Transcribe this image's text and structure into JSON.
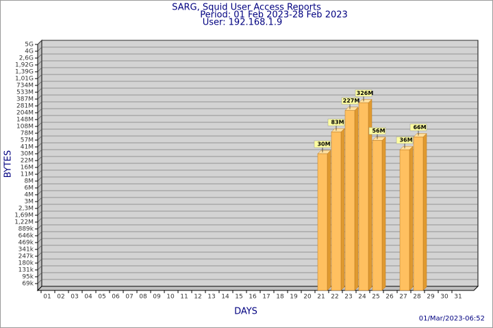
{
  "chart_data": {
    "type": "bar",
    "title": "SARG, Squid User Access Reports",
    "subtitle": "Period: 01 Feb 2023-28 Feb 2023",
    "user": "User: 192.168.1.9",
    "x_label": "DAYS",
    "y_label": "BYTES",
    "footer": "01/Mar/2023-06:52",
    "color": "#ffc060",
    "categories": [
      "01",
      "02",
      "03",
      "04",
      "05",
      "06",
      "07",
      "08",
      "09",
      "10",
      "11",
      "12",
      "13",
      "14",
      "15",
      "16",
      "17",
      "18",
      "19",
      "20",
      "21",
      "22",
      "23",
      "24",
      "25",
      "26",
      "27",
      "28",
      "29",
      "30",
      "31"
    ],
    "values": [
      null,
      null,
      null,
      null,
      null,
      null,
      null,
      null,
      null,
      null,
      null,
      null,
      null,
      null,
      null,
      null,
      null,
      null,
      null,
      null,
      30000000,
      83000000,
      227000000,
      326000000,
      56000000,
      null,
      36000000,
      66000000,
      null,
      null,
      null
    ],
    "value_labels": [
      null,
      null,
      null,
      null,
      null,
      null,
      null,
      null,
      null,
      null,
      null,
      null,
      null,
      null,
      null,
      null,
      null,
      null,
      null,
      null,
      "30M",
      "83M",
      "227M",
      "326M",
      "56M",
      null,
      "36M",
      "66M",
      null,
      null,
      null
    ],
    "ylim": [
      50000,
      5000000000
    ],
    "yticks": [
      {
        "value": 69000,
        "label": "69k"
      },
      {
        "value": 95000,
        "label": "95k"
      },
      {
        "value": 131000,
        "label": "131k"
      },
      {
        "value": 180000,
        "label": "180k"
      },
      {
        "value": 247000,
        "label": "247k"
      },
      {
        "value": 341000,
        "label": "341k"
      },
      {
        "value": 469000,
        "label": "469k"
      },
      {
        "value": 646000,
        "label": "646k"
      },
      {
        "value": 889000,
        "label": "889k"
      },
      {
        "value": 1220000,
        "label": "1,22M"
      },
      {
        "value": 1690000,
        "label": "1,69M"
      },
      {
        "value": 2300000,
        "label": "2,3M"
      },
      {
        "value": 3000000,
        "label": "3M"
      },
      {
        "value": 4000000,
        "label": "4M"
      },
      {
        "value": 6000000,
        "label": "6M"
      },
      {
        "value": 8000000,
        "label": "8M"
      },
      {
        "value": 11000000,
        "label": "11M"
      },
      {
        "value": 16000000,
        "label": "16M"
      },
      {
        "value": 22000000,
        "label": "22M"
      },
      {
        "value": 30000000,
        "label": "30M"
      },
      {
        "value": 41000000,
        "label": "41M"
      },
      {
        "value": 57000000,
        "label": "57M"
      },
      {
        "value": 78000000,
        "label": "78M"
      },
      {
        "value": 108000000,
        "label": "108M"
      },
      {
        "value": 148000000,
        "label": "148M"
      },
      {
        "value": 204000000,
        "label": "204M"
      },
      {
        "value": 281000000,
        "label": "281M"
      },
      {
        "value": 387000000,
        "label": "387M"
      },
      {
        "value": 533000000,
        "label": "533M"
      },
      {
        "value": 734000000,
        "label": "734M"
      },
      {
        "value": 1010000000,
        "label": "1,01G"
      },
      {
        "value": 1390000000,
        "label": "1,39G"
      },
      {
        "value": 1920000000,
        "label": "1,92G"
      },
      {
        "value": 2600000000,
        "label": "2,6G"
      },
      {
        "value": 4000000000,
        "label": "4G"
      },
      {
        "value": 5000000000,
        "label": "5G"
      }
    ],
    "grid": true
  }
}
